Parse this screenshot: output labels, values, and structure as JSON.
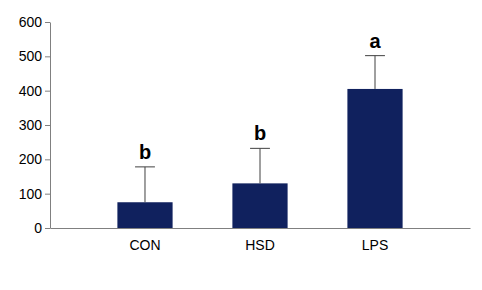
{
  "chart_data": {
    "type": "bar",
    "categories": [
      "CON",
      "HSD",
      "LPS"
    ],
    "values": [
      75,
      130,
      405
    ],
    "errors": [
      103,
      102,
      97
    ],
    "annotations": [
      "b",
      "b",
      "a"
    ],
    "color": "#10215e",
    "ylim": [
      0,
      600
    ],
    "yticks": [
      0,
      100,
      200,
      300,
      400,
      500,
      600
    ],
    "grid": false
  }
}
